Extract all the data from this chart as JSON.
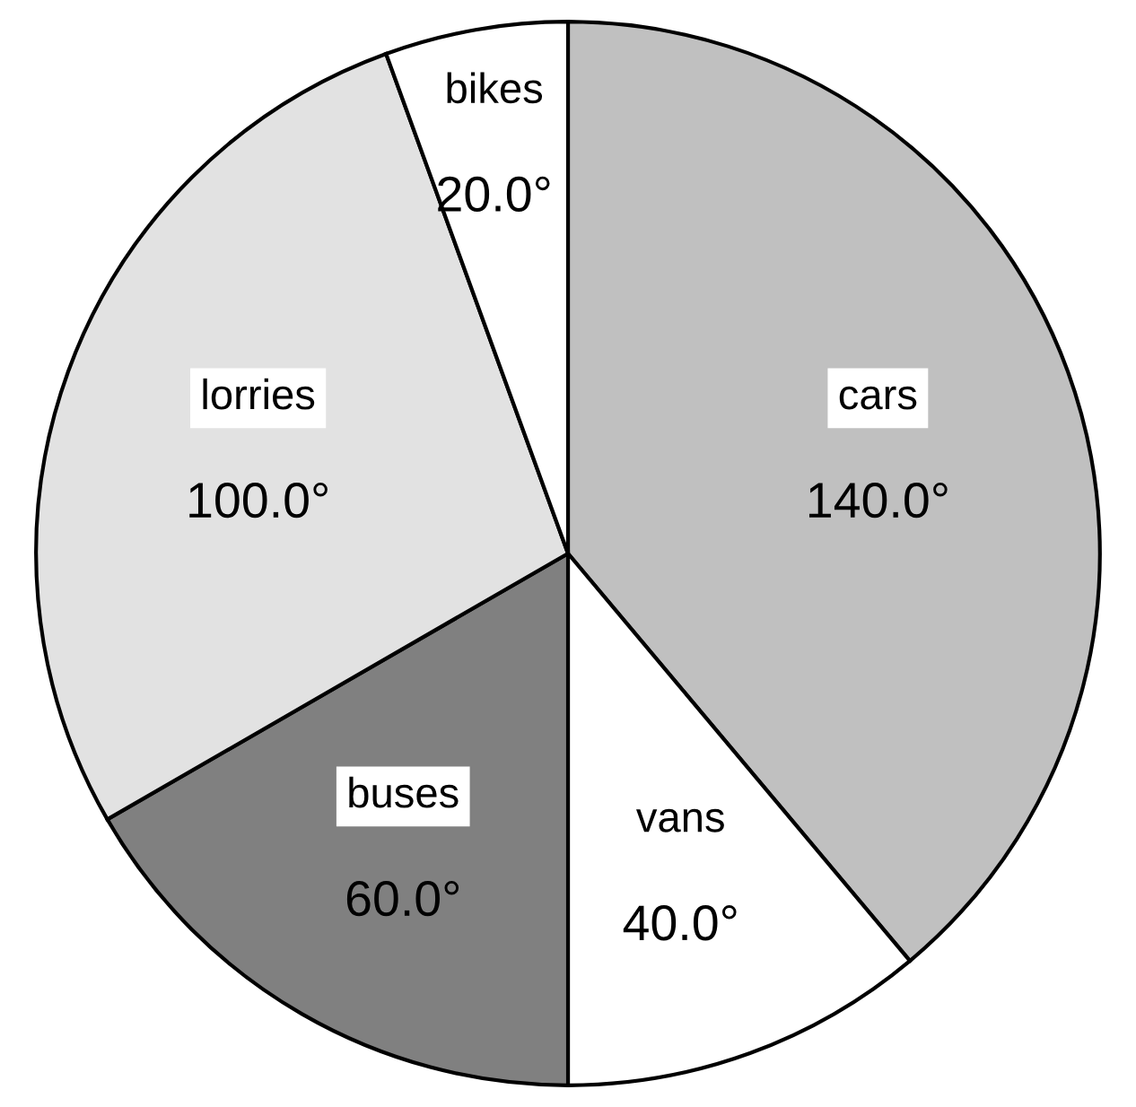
{
  "chart_data": {
    "type": "pie",
    "categories": [
      "cars",
      "vans",
      "buses",
      "lorries",
      "bikes"
    ],
    "values": [
      140,
      40,
      60,
      100,
      20
    ],
    "colors": [
      "#c0c0c0",
      "#ffffff",
      "#808080",
      "#e2e2e2",
      "#ffffff"
    ],
    "value_labels": [
      "140.0°",
      "40.0°",
      "60.0°",
      "100.0°",
      "20.0°"
    ],
    "legend": false
  }
}
